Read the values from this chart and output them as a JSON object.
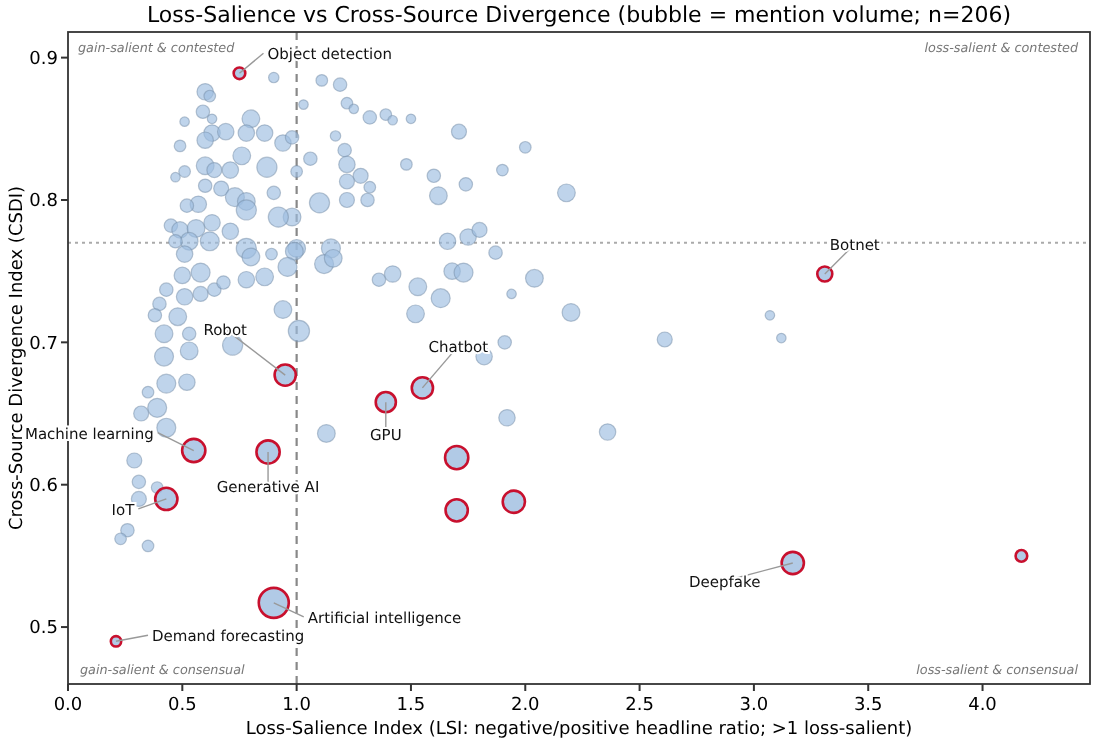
{
  "chart_data": {
    "type": "bubble",
    "title": "Loss-Salience vs Cross-Source Divergence (bubble = mention volume; n=206)",
    "xlabel": "Loss-Salience Index (LSI: negative/positive headline ratio; >1 loss-salient)",
    "ylabel": "Cross-Source Divergence Index (CSDI)",
    "xlim": [
      0,
      4.47
    ],
    "ylim": [
      0.46,
      0.918
    ],
    "xticks": [
      {
        "value": 0,
        "label": "0.0"
      },
      0.5,
      {
        "value": 1,
        "label": "1.0"
      },
      1.5,
      {
        "value": 2,
        "label": "2.0"
      },
      2.5,
      {
        "value": 3,
        "label": "3.0"
      },
      3.5,
      {
        "value": 4,
        "label": "4.0"
      }
    ],
    "yticks": [
      0.5,
      0.6,
      0.7,
      0.8,
      0.9
    ],
    "grid": false,
    "ref_lines": [
      {
        "axis": "x",
        "value": 1,
        "color": "#888888",
        "line_style": "dashed"
      },
      {
        "axis": "y",
        "value": 0.77,
        "color": "#aaaaaa",
        "line_style": "dotted"
      }
    ],
    "annotations": [
      "gain-salient & contested",
      "loss-salient & contested",
      "gain-salient & consensual",
      "loss-salient & consensual",
      {
        "text": "Object detection",
        "x": 0.75,
        "y": 0.889
      },
      {
        "text": "Robot",
        "x": 0.95,
        "y": 0.677
      },
      {
        "text": "Chatbot",
        "x": 1.55,
        "y": 0.668
      },
      {
        "text": "GPU",
        "x": 1.39,
        "y": 0.658
      },
      {
        "text": "Machine learning",
        "x": 0.55,
        "y": 0.624
      },
      {
        "text": "Generative AI",
        "x": 0.875,
        "y": 0.623
      },
      {
        "text": "IoT",
        "x": 0.43,
        "y": 0.59
      },
      {
        "text": "Artificial intelligence",
        "x": 0.9,
        "y": 0.517
      },
      {
        "text": "Demand forecasting",
        "x": 0.21,
        "y": 0.49
      },
      {
        "text": "Botnet",
        "x": 3.31,
        "y": 0.748
      },
      {
        "text": "Deepfake",
        "x": 3.17,
        "y": 0.545
      }
    ],
    "series": [
      {
        "color": "#9dbde0",
        "x": [
          0.6,
          0.62,
          0.9,
          1.11,
          1.19,
          1.03,
          1.22,
          1.25,
          1.32,
          1.39,
          1.42,
          1.5,
          1.71,
          2.0,
          1.9,
          1.48,
          1.6,
          1.62,
          1.74,
          2.18,
          1.17,
          1.21,
          1.22,
          1.28,
          1.22,
          1.32,
          1.31,
          1.22,
          1.1,
          1.06,
          1.0,
          0.98,
          0.94,
          0.49,
          0.51,
          0.59,
          0.63,
          0.63,
          0.6,
          0.69,
          0.8,
          0.78,
          0.76,
          0.86,
          0.87,
          0.98,
          0.6,
          0.64,
          0.71,
          0.51,
          0.47,
          0.6,
          0.67,
          0.73,
          0.78,
          0.78,
          0.9,
          0.92,
          0.57,
          0.52,
          0.45,
          0.49,
          0.56,
          0.63,
          0.71,
          0.62,
          0.53,
          0.47,
          0.78,
          1.0,
          1.15,
          0.8,
          0.89,
          0.99,
          0.96,
          1.12,
          1.16,
          0.86,
          0.78,
          0.58,
          0.5,
          0.43,
          0.51,
          0.58,
          0.64,
          0.68,
          0.4,
          0.38,
          0.48,
          0.53,
          0.42,
          0.94,
          1.01,
          0.51,
          1.53,
          1.63,
          1.52,
          1.94,
          2.04,
          2.2,
          1.91,
          1.87,
          1.66,
          1.75,
          1.8,
          1.36,
          1.42,
          1.68,
          1.73,
          3.07,
          3.12,
          2.61,
          2.36,
          0.72,
          0.53,
          0.42,
          0.43,
          0.52,
          0.39,
          0.35,
          0.43,
          0.32,
          0.29,
          0.31,
          0.39,
          0.31,
          0.26,
          0.35,
          0.23,
          1.13,
          1.82,
          1.92
        ],
        "values": [
          0.876,
          0.873,
          0.886,
          0.884,
          0.881,
          0.867,
          0.868,
          0.864,
          0.858,
          0.86,
          0.856,
          0.857,
          0.848,
          0.837,
          0.821,
          0.825,
          0.817,
          0.803,
          0.811,
          0.805,
          0.845,
          0.835,
          0.825,
          0.817,
          0.813,
          0.809,
          0.8,
          0.8,
          0.798,
          0.829,
          0.82,
          0.788,
          0.84,
          0.838,
          0.855,
          0.862,
          0.857,
          0.847,
          0.842,
          0.848,
          0.857,
          0.847,
          0.831,
          0.847,
          0.823,
          0.844,
          0.824,
          0.821,
          0.821,
          0.82,
          0.816,
          0.81,
          0.808,
          0.802,
          0.799,
          0.793,
          0.805,
          0.788,
          0.797,
          0.796,
          0.782,
          0.779,
          0.78,
          0.784,
          0.778,
          0.771,
          0.771,
          0.771,
          0.766,
          0.766,
          0.766,
          0.76,
          0.762,
          0.764,
          0.753,
          0.755,
          0.759,
          0.746,
          0.744,
          0.749,
          0.747,
          0.737,
          0.732,
          0.734,
          0.737,
          0.742,
          0.727,
          0.719,
          0.718,
          0.706,
          0.706,
          0.723,
          0.708,
          0.762,
          0.739,
          0.731,
          0.72,
          0.734,
          0.745,
          0.721,
          0.7,
          0.763,
          0.771,
          0.774,
          0.779,
          0.744,
          0.748,
          0.75,
          0.749,
          0.719,
          0.703,
          0.702,
          0.637,
          0.698,
          0.694,
          0.69,
          0.671,
          0.672,
          0.654,
          0.665,
          0.64,
          0.65,
          0.617,
          0.602,
          0.598,
          0.59,
          0.568,
          0.557,
          0.562,
          0.636,
          0.69,
          0.647
        ],
        "sizes": [
          0.3,
          0.15,
          0.12,
          0.15,
          0.2,
          0.1,
          0.15,
          0.1,
          0.2,
          0.15,
          0.1,
          0.1,
          0.25,
          0.15,
          0.15,
          0.15,
          0.2,
          0.35,
          0.2,
          0.35,
          0.12,
          0.2,
          0.3,
          0.25,
          0.25,
          0.15,
          0.2,
          0.25,
          0.45,
          0.2,
          0.15,
          0.35,
          0.3,
          0.15,
          0.1,
          0.2,
          0.1,
          0.3,
          0.3,
          0.3,
          0.35,
          0.3,
          0.35,
          0.3,
          0.45,
          0.2,
          0.35,
          0.25,
          0.3,
          0.15,
          0.1,
          0.2,
          0.25,
          0.4,
          0.35,
          0.45,
          0.2,
          0.45,
          0.3,
          0.2,
          0.2,
          0.3,
          0.35,
          0.3,
          0.3,
          0.4,
          0.35,
          0.2,
          0.45,
          0.35,
          0.4,
          0.35,
          0.15,
          0.35,
          0.4,
          0.4,
          0.35,
          0.35,
          0.3,
          0.4,
          0.3,
          0.2,
          0.3,
          0.25,
          0.2,
          0.2,
          0.2,
          0.2,
          0.35,
          0.2,
          0.35,
          0.35,
          0.5,
          0.3,
          0.35,
          0.4,
          0.35,
          0.1,
          0.35,
          0.35,
          0.2,
          0.2,
          0.3,
          0.3,
          0.25,
          0.2,
          0.3,
          0.3,
          0.4,
          0.1,
          0.1,
          0.25,
          0.3,
          0.45,
          0.35,
          0.4,
          0.4,
          0.3,
          0.4,
          0.15,
          0.4,
          0.25,
          0.25,
          0.2,
          0.15,
          0.25,
          0.2,
          0.15,
          0.15,
          0.35,
          0.3,
          0.3
        ]
      },
      {
        "color": "#c8102e",
        "x": [
          0.75,
          0.95,
          1.55,
          1.39,
          0.55,
          0.875,
          1.7,
          0.43,
          1.7,
          1.95,
          0.9,
          0.21,
          3.31,
          3.17,
          4.17
        ],
        "values": [
          0.889,
          0.677,
          0.668,
          0.658,
          0.624,
          0.623,
          0.619,
          0.59,
          0.582,
          0.588,
          0.517,
          0.49,
          0.748,
          0.545,
          0.55
        ],
        "sizes": [
          0.15,
          0.5,
          0.5,
          0.45,
          0.6,
          0.6,
          0.6,
          0.55,
          0.55,
          0.55,
          1,
          0.12,
          0.25,
          0.55,
          0.15
        ]
      }
    ]
  }
}
